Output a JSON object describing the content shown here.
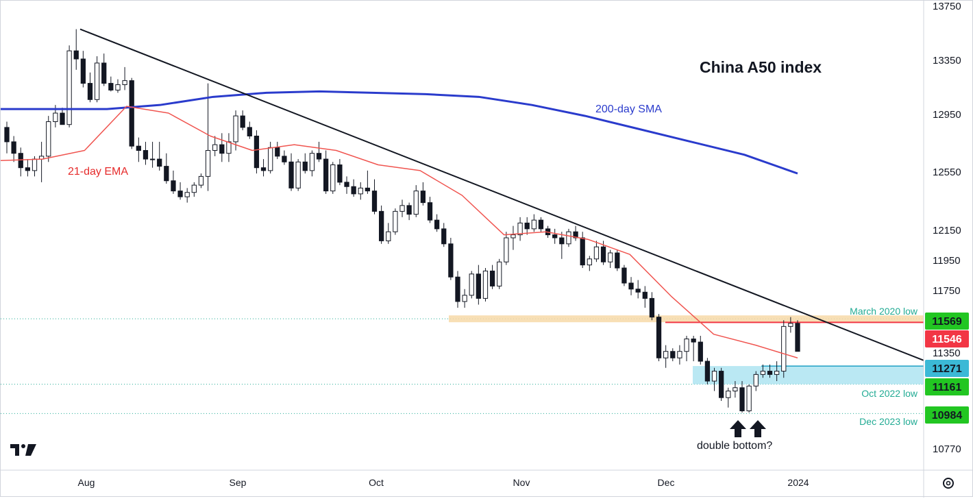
{
  "chart_data": {
    "type": "candlestick",
    "title": "China A50 index",
    "y_axis": {
      "ticks": [
        "13750",
        "13350",
        "12950",
        "12550",
        "12150",
        "11950",
        "11750",
        "11350",
        "10770"
      ],
      "ylim": [
        10680,
        13750
      ]
    },
    "x_axis": {
      "ticks": [
        "Aug",
        "Sep",
        "Oct",
        "Nov",
        "Dec",
        "2024"
      ]
    },
    "indicators": [
      {
        "name": "200-day SMA",
        "color": "#2a3bcc",
        "values": [
          12990,
          12990,
          12990,
          13020,
          13080,
          13110,
          13120,
          13110,
          13100,
          13080,
          13020,
          12940,
          12850,
          12760,
          12670,
          12540
        ]
      },
      {
        "name": "21-day EMA",
        "color": "#f0544f",
        "values": [
          12630,
          12640,
          12700,
          13010,
          12960,
          12800,
          12700,
          12740,
          12700,
          12600,
          12560,
          12390,
          12120,
          12140,
          12090,
          11990,
          11710,
          11470,
          11400,
          11320
        ]
      }
    ],
    "price_labels": [
      {
        "value": 11569,
        "label": "11569",
        "note": "March 2020 low",
        "bg": "#22c622",
        "fg": "#131722"
      },
      {
        "value": 11546,
        "label": "11546",
        "note": "",
        "bg": "#f23645",
        "fg": "#ffffff"
      },
      {
        "value": 11271,
        "label": "11271",
        "note": "",
        "bg": "#3bb9d6",
        "fg": "#131722"
      },
      {
        "value": 11161,
        "label": "11161",
        "note": "Oct 2022 low",
        "bg": "#22c622",
        "fg": "#131722"
      },
      {
        "value": 10984,
        "label": "10984",
        "note": "Dec 2023 low",
        "bg": "#22c622",
        "fg": "#131722"
      }
    ],
    "annotations": {
      "sma_label": "200-day SMA",
      "ema_label": "21-day EMA",
      "double_bottom": "double bottom?"
    },
    "trendline": {
      "from": [
        "Aug",
        13580
      ],
      "to": [
        "2024",
        11330
      ]
    },
    "candles": [
      [
        12860,
        12900,
        12680,
        12760
      ],
      [
        12760,
        12800,
        12620,
        12680
      ],
      [
        12680,
        12720,
        12520,
        12580
      ],
      [
        12580,
        12640,
        12520,
        12560
      ],
      [
        12560,
        12660,
        12520,
        12640
      ],
      [
        12640,
        12760,
        12480,
        12660
      ],
      [
        12660,
        12940,
        12620,
        12900
      ],
      [
        12900,
        13020,
        12860,
        12960
      ],
      [
        12960,
        13000,
        12880,
        12880
      ],
      [
        12880,
        13460,
        12860,
        13420
      ],
      [
        13420,
        13580,
        13280,
        13360
      ],
      [
        13360,
        13420,
        13150,
        13180
      ],
      [
        13180,
        13260,
        13040,
        13060
      ],
      [
        13060,
        13380,
        13040,
        13330
      ],
      [
        13330,
        13400,
        13160,
        13180
      ],
      [
        13180,
        13230,
        13120,
        13130
      ],
      [
        13130,
        13210,
        13110,
        13170
      ],
      [
        13170,
        13300,
        13130,
        13200
      ],
      [
        13200,
        13220,
        12710,
        12730
      ],
      [
        12730,
        12790,
        12620,
        12700
      ],
      [
        12700,
        12760,
        12600,
        12640
      ],
      [
        12640,
        12760,
        12580,
        12640
      ],
      [
        12640,
        12760,
        12560,
        12590
      ],
      [
        12590,
        12680,
        12470,
        12490
      ],
      [
        12490,
        12560,
        12400,
        12420
      ],
      [
        12420,
        12480,
        12360,
        12380
      ],
      [
        12380,
        12440,
        12340,
        12410
      ],
      [
        12410,
        12480,
        12380,
        12460
      ],
      [
        12460,
        12540,
        12440,
        12520
      ],
      [
        12520,
        13180,
        12420,
        12700
      ],
      [
        12700,
        12800,
        12660,
        12740
      ],
      [
        12740,
        12820,
        12620,
        12680
      ],
      [
        12680,
        12820,
        12620,
        12760
      ],
      [
        12760,
        12980,
        12700,
        12940
      ],
      [
        12940,
        12980,
        12840,
        12860
      ],
      [
        12860,
        12900,
        12780,
        12800
      ],
      [
        12800,
        12840,
        12540,
        12580
      ],
      [
        12580,
        12640,
        12520,
        12560
      ],
      [
        12560,
        12760,
        12540,
        12720
      ],
      [
        12720,
        12760,
        12640,
        12660
      ],
      [
        12660,
        12700,
        12600,
        12620
      ],
      [
        12620,
        12680,
        12420,
        12440
      ],
      [
        12440,
        12640,
        12420,
        12620
      ],
      [
        12620,
        12680,
        12540,
        12560
      ],
      [
        12560,
        12700,
        12520,
        12680
      ],
      [
        12680,
        12760,
        12620,
        12640
      ],
      [
        12640,
        12700,
        12400,
        12420
      ],
      [
        12420,
        12620,
        12400,
        12600
      ],
      [
        12600,
        12640,
        12460,
        12480
      ],
      [
        12480,
        12520,
        12400,
        12450
      ],
      [
        12450,
        12500,
        12380,
        12400
      ],
      [
        12400,
        12480,
        12360,
        12440
      ],
      [
        12440,
        12560,
        12400,
        12420
      ],
      [
        12420,
        12500,
        12260,
        12280
      ],
      [
        12280,
        12320,
        12060,
        12080
      ],
      [
        12080,
        12200,
        12060,
        12140
      ],
      [
        12140,
        12300,
        12120,
        12280
      ],
      [
        12280,
        12360,
        12240,
        12320
      ],
      [
        12320,
        12340,
        12220,
        12260
      ],
      [
        12260,
        12460,
        12240,
        12420
      ],
      [
        12420,
        12480,
        12320,
        12340
      ],
      [
        12340,
        12380,
        12200,
        12220
      ],
      [
        12220,
        12260,
        12140,
        12160
      ],
      [
        12160,
        12200,
        12040,
        12060
      ],
      [
        12060,
        12100,
        11820,
        11840
      ],
      [
        11840,
        11880,
        11640,
        11680
      ],
      [
        11680,
        11760,
        11640,
        11720
      ],
      [
        11720,
        11880,
        11700,
        11860
      ],
      [
        11860,
        11920,
        11660,
        11700
      ],
      [
        11700,
        11900,
        11680,
        11880
      ],
      [
        11880,
        11920,
        11760,
        11780
      ],
      [
        11780,
        11960,
        11760,
        11940
      ],
      [
        11940,
        12140,
        11920,
        12100
      ],
      [
        12100,
        12180,
        12020,
        12120
      ],
      [
        12120,
        12240,
        12080,
        12200
      ],
      [
        12200,
        12240,
        12120,
        12160
      ],
      [
        12160,
        12260,
        12140,
        12220
      ],
      [
        12220,
        12240,
        12140,
        12160
      ],
      [
        12160,
        12180,
        12100,
        12120
      ],
      [
        12120,
        12160,
        12060,
        12100
      ],
      [
        12100,
        12140,
        11960,
        12060
      ],
      [
        12060,
        12160,
        12040,
        12140
      ],
      [
        12140,
        12180,
        12080,
        12100
      ],
      [
        12100,
        12140,
        11900,
        11920
      ],
      [
        11920,
        11980,
        11880,
        11960
      ],
      [
        11960,
        12080,
        11940,
        12040
      ],
      [
        12040,
        12080,
        11920,
        11940
      ],
      [
        11940,
        12020,
        11900,
        12000
      ],
      [
        12000,
        12020,
        11880,
        11900
      ],
      [
        11900,
        11920,
        11780,
        11800
      ],
      [
        11800,
        11840,
        11720,
        11760
      ],
      [
        11760,
        11820,
        11700,
        11740
      ],
      [
        11740,
        11780,
        11640,
        11700
      ],
      [
        11700,
        11740,
        11560,
        11580
      ],
      [
        11580,
        11600,
        11300,
        11320
      ],
      [
        11320,
        11400,
        11260,
        11360
      ],
      [
        11360,
        11380,
        11300,
        11320
      ],
      [
        11320,
        11400,
        11280,
        11360
      ],
      [
        11360,
        11460,
        11300,
        11440
      ],
      [
        11440,
        11460,
        11300,
        11420
      ],
      [
        11420,
        11460,
        11280,
        11300
      ],
      [
        11300,
        11320,
        11160,
        11180
      ],
      [
        11180,
        11260,
        11120,
        11240
      ],
      [
        11240,
        11260,
        11060,
        11080
      ],
      [
        11080,
        11140,
        11020,
        11120
      ],
      [
        11120,
        11180,
        11080,
        11140
      ],
      [
        11140,
        11180,
        10990,
        11000
      ],
      [
        11000,
        11160,
        10990,
        11150
      ],
      [
        11150,
        11240,
        11120,
        11220
      ],
      [
        11220,
        11280,
        11200,
        11240
      ],
      [
        11240,
        11280,
        11200,
        11220
      ],
      [
        11220,
        11300,
        11180,
        11240
      ],
      [
        11240,
        11560,
        11200,
        11520
      ],
      [
        11520,
        11580,
        11480,
        11540
      ],
      [
        11540,
        11560,
        11360,
        11360
      ]
    ]
  },
  "branding": {
    "logo": "tradingview-logo",
    "settings_icon": "gear-icon"
  }
}
